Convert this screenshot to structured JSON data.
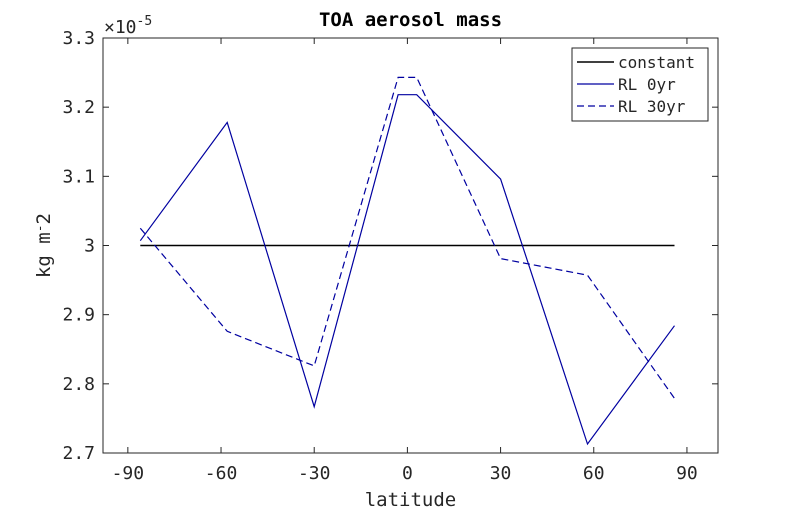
{
  "chart_data": {
    "type": "line",
    "title": "TOA aerosol mass",
    "xlabel": "latitude",
    "ylabel": "kg m^-2",
    "ylabel_parts": {
      "base": "kg m",
      "superscript": "-",
      "tail": "2"
    },
    "xlim": [
      -98,
      100
    ],
    "ylim": [
      2.7,
      3.3
    ],
    "y_exponent_label": {
      "base": "×10",
      "power": "-5"
    },
    "xticks": [
      -90,
      -60,
      -30,
      0,
      30,
      60,
      90
    ],
    "xtick_labels": [
      "-90",
      "-60",
      "-30",
      "0",
      "30",
      "60",
      "90"
    ],
    "yticks": [
      2.7,
      2.8,
      2.9,
      3.0,
      3.1,
      3.2,
      3.3
    ],
    "ytick_labels": [
      "2.7",
      "2.8",
      "2.9",
      "3",
      "3.1",
      "3.2",
      "3.3"
    ],
    "grid": false,
    "legend_position": "top-right",
    "series": [
      {
        "name": "constant",
        "color": "#000000",
        "dash": "solid",
        "x": [
          -86,
          86
        ],
        "y": [
          3.0,
          3.0
        ]
      },
      {
        "name": "RL 0yr",
        "color": "#0000a0",
        "dash": "solid",
        "x": [
          -86,
          -58,
          -30,
          -3,
          3,
          30,
          58,
          86
        ],
        "y": [
          3.007,
          3.178,
          2.767,
          3.218,
          3.218,
          3.096,
          2.713,
          2.884
        ]
      },
      {
        "name": "RL 30yr",
        "color": "#0000a0",
        "dash": "dashed",
        "x": [
          -86,
          -58,
          -30,
          -3,
          3,
          30,
          58,
          86
        ],
        "y": [
          3.025,
          2.876,
          2.826,
          3.243,
          3.243,
          2.981,
          2.957,
          2.779
        ]
      }
    ]
  }
}
